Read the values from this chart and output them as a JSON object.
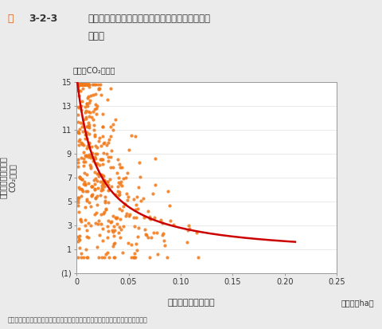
{
  "title_prefix": "図3-2-3",
  "title_main_line1": "市街化区域人口密度と一人当たり自動車排出量と",
  "title_main_line2": "の関係",
  "xlabel": "市街化区域人口密度",
  "xlabel_unit": "（千人／ha）",
  "ylabel_unit_top": "（トンCO₂／人）",
  "ylabel_chars": [
    "１",
    "人",
    "当",
    "た",
    "り",
    "全",
    "自",
    "動",
    "車",
    "CO₂",
    "排",
    "出",
    "量"
  ],
  "xmin": 0,
  "xmax": 0.25,
  "ymin": -1,
  "ymax": 15,
  "yticks": [
    -1,
    1,
    3,
    5,
    7,
    9,
    11,
    13,
    15
  ],
  "ytick_labels": [
    "(1)",
    "1",
    "3",
    "5",
    "7",
    "9",
    "11",
    "13",
    "15"
  ],
  "xticks": [
    0,
    0.05,
    0.1,
    0.15,
    0.2,
    0.25
  ],
  "xtick_labels": [
    "0",
    "0.05",
    "0.10",
    "0.15",
    "0.20",
    "0.25"
  ],
  "dot_color": "#F07818",
  "curve_color": "#CC0000",
  "bg_color": "#EBEBEB",
  "plot_bg_color": "#FFFFFF",
  "source_text": "資料：都市計画年報、環境省「土地利用・交通モデル（全国版）」より環境省作成",
  "curve_A": 0.29,
  "curve_B": 0.019,
  "curve_C": 0.35,
  "seed": 42
}
